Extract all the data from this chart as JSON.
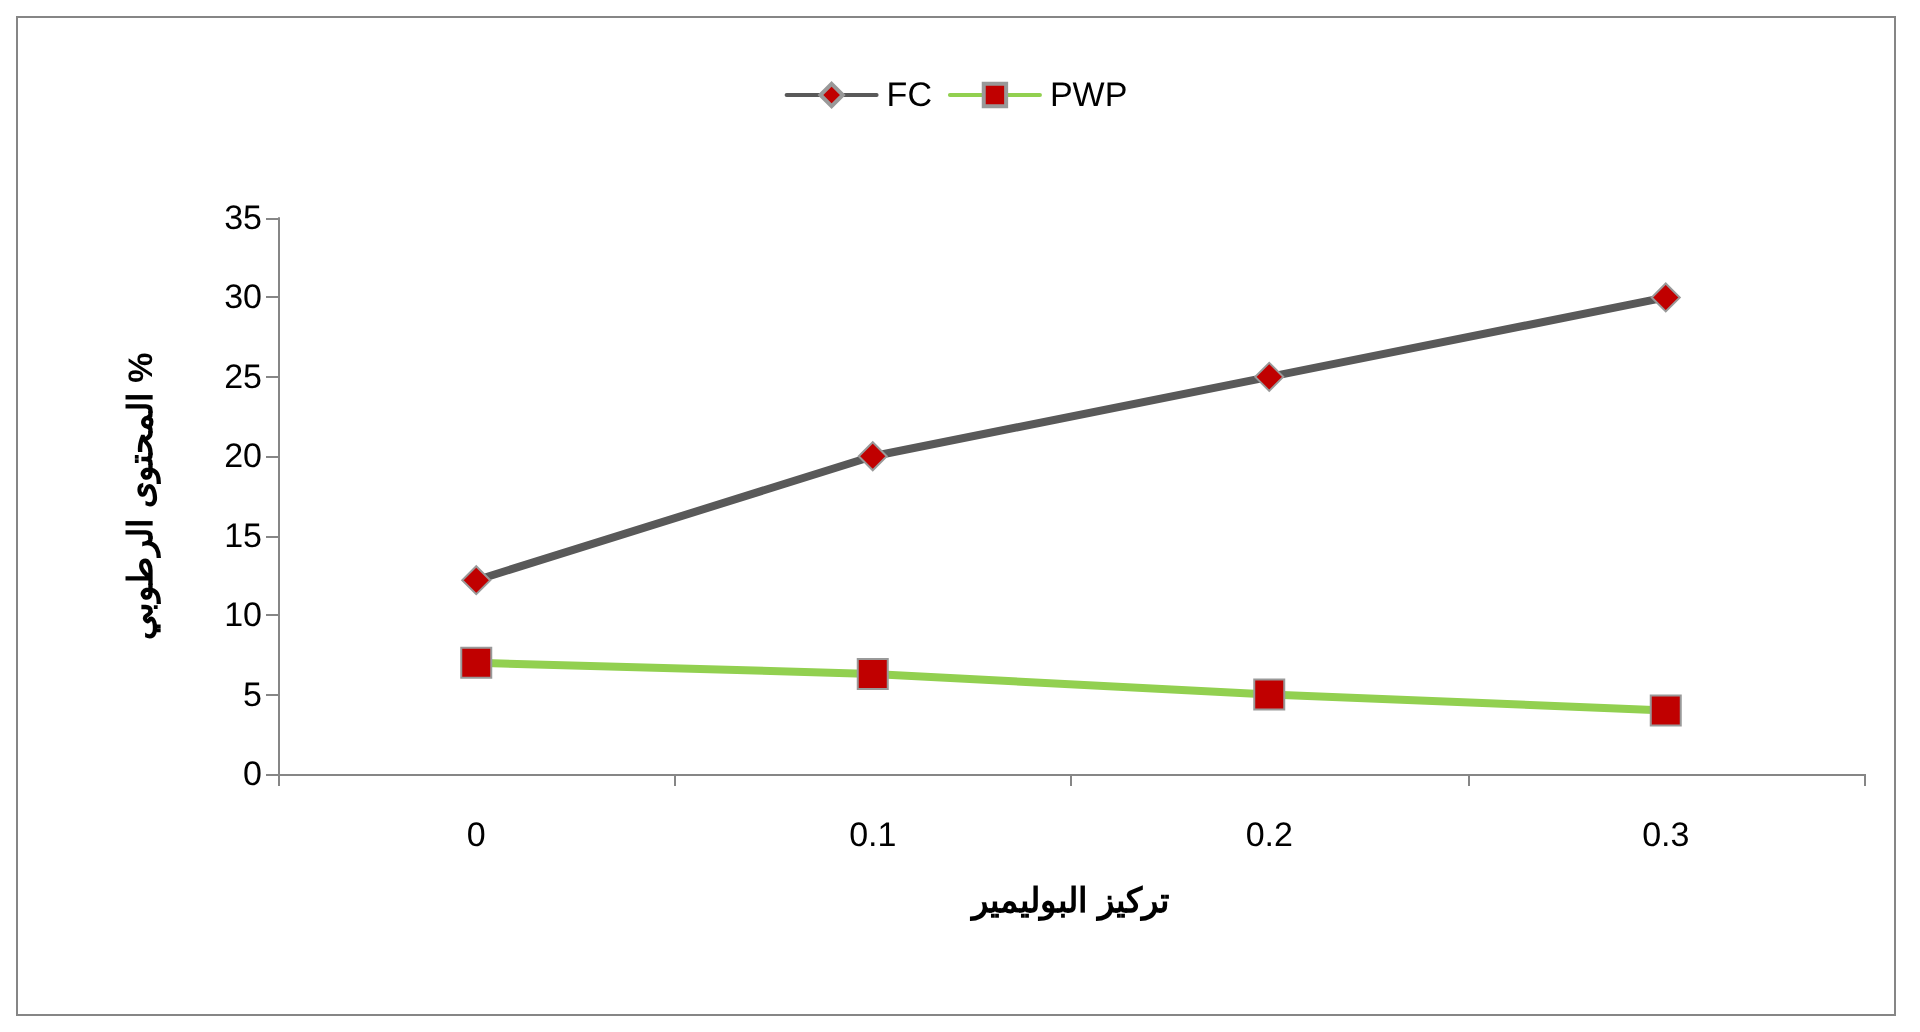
{
  "chart_data": {
    "type": "line",
    "xlabel": "تركيز البوليمير",
    "ylabel": "المحتوى الرطوبي %",
    "categories": [
      "0",
      "0.1",
      "0.2",
      "0.3"
    ],
    "series": [
      {
        "name": "FC",
        "color": "#595959",
        "marker": "diamond",
        "values": [
          12.2,
          20,
          25,
          30
        ]
      },
      {
        "name": "PWP",
        "color": "#92d050",
        "marker": "square",
        "values": [
          7,
          6.3,
          5,
          4
        ]
      }
    ],
    "ylim": [
      0,
      35
    ],
    "yticks": [
      0,
      5,
      10,
      15,
      20,
      25,
      30,
      35
    ],
    "grid": false,
    "legend": "top"
  }
}
